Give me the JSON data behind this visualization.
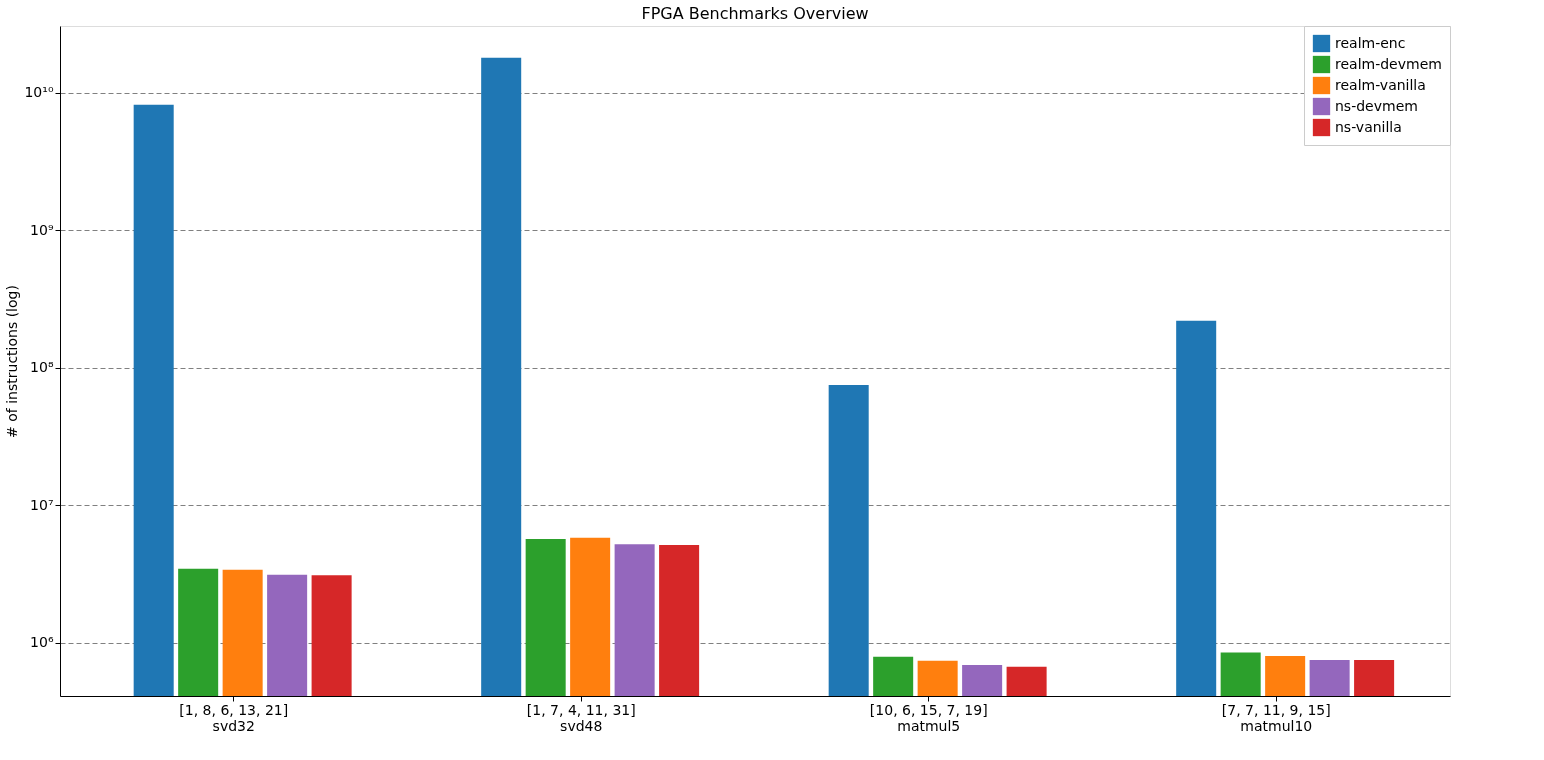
{
  "chart_data": {
    "type": "bar",
    "title": "FPGA Benchmarks Overview",
    "ylabel": "# of instructions (log)",
    "categories": [
      "[1, 8, 6, 13, 21]\nsvd32",
      "[1, 7, 4, 11, 31]\nsvd48",
      "[10, 6, 15, 7, 19]\nmatmul5",
      "[7, 7, 11, 9, 15]\nmatmul10"
    ],
    "series": [
      {
        "name": "realm-enc",
        "color": "#1f77b4",
        "values": [
          8200000000,
          18000000000,
          75000000,
          220000000
        ]
      },
      {
        "name": "realm-devmem",
        "color": "#2ca02c",
        "values": [
          3450000,
          5700000,
          790000,
          850000
        ]
      },
      {
        "name": "realm-vanilla",
        "color": "#ff7f0e",
        "values": [
          3400000,
          5800000,
          740000,
          800000
        ]
      },
      {
        "name": "ns-devmem",
        "color": "#9467bd",
        "values": [
          3130000,
          5200000,
          690000,
          750000
        ]
      },
      {
        "name": "ns-vanilla",
        "color": "#d62728",
        "values": [
          3100000,
          5150000,
          670000,
          750000
        ]
      }
    ],
    "log": true,
    "ylim": [
      410000,
      30700000000
    ],
    "yticks": [
      {
        "value": 1000000,
        "label": "10⁶"
      },
      {
        "value": 10000000,
        "label": "10⁷"
      },
      {
        "value": 100000000,
        "label": "10⁸"
      },
      {
        "value": 1000000000,
        "label": "10⁹"
      },
      {
        "value": 10000000000,
        "label": "10¹⁰"
      }
    ],
    "grid": "y",
    "legend": "top right"
  }
}
